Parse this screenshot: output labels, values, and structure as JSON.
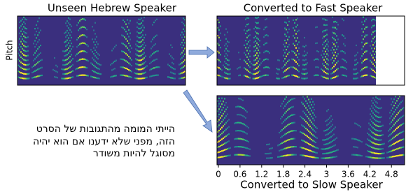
{
  "source": {
    "title": "Unseen Hebrew Speaker",
    "y_label": "Pitch"
  },
  "fast": {
    "title": "Converted to Fast Speaker"
  },
  "slow": {
    "title": "Converted to Slow Speaker",
    "x_ticks": [
      0,
      0.6,
      1.2,
      1.8,
      2.4,
      3,
      3.6,
      4.2,
      4.8
    ]
  },
  "caption": {
    "lines": [
      "הייתי המומה מהתגובות של הסרט",
      "הזה, מפני שלא ידענו אם הוא יהיה",
      "מסוגל להיות משודר"
    ]
  }
}
